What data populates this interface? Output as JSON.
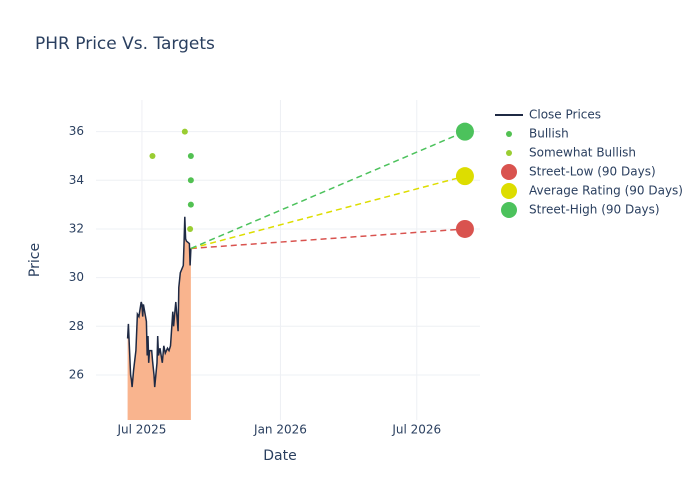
{
  "chart_data": {
    "type": "line",
    "title": "PHR Price Vs. Targets",
    "x_label": "Date",
    "y_label": "Price",
    "xlim": [
      "2025-05-01",
      "2026-09-23"
    ],
    "xticks": [
      {
        "value": "2025-07-01",
        "label": "Jul 2025"
      },
      {
        "value": "2026-01-01",
        "label": "Jan 2026"
      },
      {
        "value": "2026-07-01",
        "label": "Jul 2026"
      }
    ],
    "ylim": [
      24.15,
      37.3
    ],
    "yticks": [
      26,
      28,
      30,
      32,
      34,
      36
    ],
    "grid": true,
    "legend": "right",
    "series": [
      {
        "name": "Close Prices",
        "mode": "line",
        "color": "#1f2a44",
        "fill_color": "#f9b48e",
        "x": [
          "2025-06-12",
          "2025-06-13",
          "2025-06-16",
          "2025-06-17",
          "2025-06-18",
          "2025-06-20",
          "2025-06-23",
          "2025-06-24",
          "2025-06-25",
          "2025-06-27",
          "2025-06-30",
          "2025-07-01",
          "2025-07-02",
          "2025-07-03",
          "2025-07-07",
          "2025-07-08",
          "2025-07-09",
          "2025-07-10",
          "2025-07-11",
          "2025-07-14",
          "2025-07-15",
          "2025-07-17",
          "2025-07-18",
          "2025-07-21",
          "2025-07-22",
          "2025-07-23",
          "2025-07-25",
          "2025-07-28",
          "2025-07-30",
          "2025-08-01",
          "2025-08-04",
          "2025-08-06",
          "2025-08-08",
          "2025-08-11",
          "2025-08-12",
          "2025-08-14",
          "2025-08-15",
          "2025-08-18",
          "2025-08-19",
          "2025-08-21",
          "2025-08-25",
          "2025-08-26",
          "2025-08-27",
          "2025-08-28",
          "2025-08-29",
          "2025-09-02",
          "2025-09-03",
          "2025-09-04"
        ],
        "values": [
          27.5,
          28.1,
          26.0,
          25.8,
          25.5,
          26.2,
          27.0,
          27.8,
          28.5,
          28.4,
          29.0,
          28.9,
          28.4,
          28.9,
          28.2,
          26.8,
          27.6,
          26.5,
          27.0,
          27.0,
          26.6,
          26.0,
          25.5,
          26.5,
          27.6,
          26.8,
          27.1,
          26.5,
          27.2,
          26.9,
          27.1,
          27.0,
          27.2,
          28.6,
          28.0,
          28.7,
          29.0,
          27.8,
          29.6,
          30.2,
          30.5,
          31.5,
          32.5,
          31.6,
          31.5,
          31.4,
          30.5,
          31.2
        ]
      },
      {
        "name": "Bullish",
        "mode": "markers",
        "color": "#52c152",
        "size": 3,
        "x": [
          "2025-09-04",
          "2025-09-04",
          "2025-09-04"
        ],
        "values": [
          35,
          34,
          33
        ]
      },
      {
        "name": "Somewhat Bullish",
        "mode": "markers",
        "color": "#9acd32",
        "size": 3,
        "x": [
          "2025-07-15",
          "2025-08-27",
          "2025-09-03"
        ],
        "values": [
          35,
          36,
          32
        ]
      },
      {
        "name": "Street-Low (90 Days)",
        "mode": "target",
        "color": "#d9534f",
        "size": 9,
        "x": [
          "2026-09-03"
        ],
        "values": [
          32
        ]
      },
      {
        "name": "Average Rating (90 Days)",
        "mode": "target",
        "color": "#dddd00",
        "size": 9,
        "x": [
          "2026-09-03"
        ],
        "values": [
          34.17
        ]
      },
      {
        "name": "Street-High (90 Days)",
        "mode": "target",
        "color": "#4cc25c",
        "size": 9,
        "x": [
          "2026-09-03"
        ],
        "values": [
          36
        ]
      }
    ]
  }
}
